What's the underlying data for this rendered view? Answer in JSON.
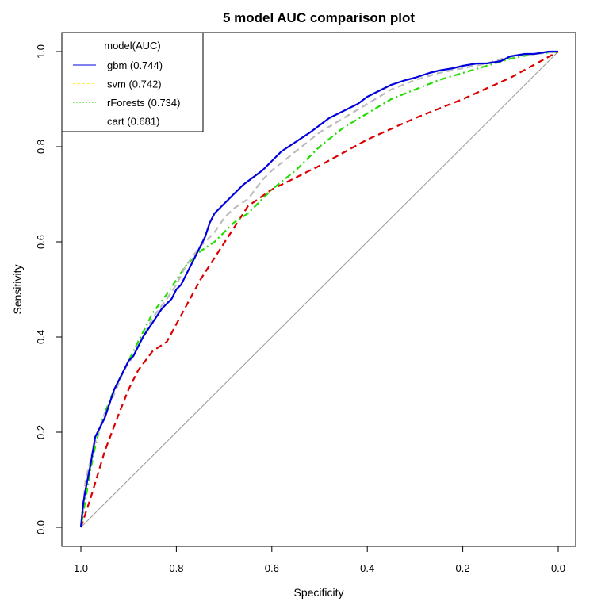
{
  "chart_data": {
    "type": "line",
    "title": "5 model AUC comparison plot",
    "xlabel": "Specificity",
    "ylabel": "Sensitivity",
    "xlim": [
      1.0,
      0.0
    ],
    "ylim": [
      0.0,
      1.0
    ],
    "x_reversed": true,
    "grid": false,
    "xticks": [
      "1.0",
      "0.8",
      "0.6",
      "0.4",
      "0.2",
      "0.0"
    ],
    "yticks": [
      "0.0",
      "0.2",
      "0.4",
      "0.6",
      "0.8",
      "1.0"
    ],
    "legend": {
      "title": "model(AUC)",
      "position": "top-left",
      "entries": [
        "gbm (0.744)",
        "svm (0.742)",
        "rForests (0.734)",
        "cart (0.681)"
      ]
    },
    "reference_line": {
      "from": [
        1.0,
        0.0
      ],
      "to": [
        0.0,
        1.0
      ],
      "color": "#9a9a9a"
    },
    "series": [
      {
        "name": "cart (0.681)",
        "color": "#dd0000",
        "style": "dashed",
        "legend_color": "#dd0000",
        "x": [
          1.0,
          0.98,
          0.95,
          0.92,
          0.9,
          0.88,
          0.85,
          0.82,
          0.75,
          0.65,
          0.6,
          0.55,
          0.5,
          0.4,
          0.3,
          0.2,
          0.1,
          0.0
        ],
        "y": [
          0.0,
          0.06,
          0.16,
          0.24,
          0.29,
          0.33,
          0.37,
          0.39,
          0.52,
          0.675,
          0.71,
          0.735,
          0.76,
          0.815,
          0.86,
          0.9,
          0.945,
          1.0
        ]
      },
      {
        "name": "rForests (0.734)",
        "color": "#22dd00",
        "style": "dotdash",
        "legend_color": "#22dd00",
        "x": [
          1.0,
          0.99,
          0.98,
          0.97,
          0.96,
          0.95,
          0.93,
          0.91,
          0.89,
          0.87,
          0.85,
          0.82,
          0.8,
          0.78,
          0.75,
          0.72,
          0.7,
          0.68,
          0.65,
          0.62,
          0.6,
          0.55,
          0.5,
          0.45,
          0.4,
          0.35,
          0.3,
          0.25,
          0.2,
          0.15,
          0.1,
          0.05,
          0.0
        ],
        "y": [
          0.0,
          0.06,
          0.12,
          0.17,
          0.21,
          0.24,
          0.29,
          0.33,
          0.37,
          0.41,
          0.45,
          0.49,
          0.52,
          0.55,
          0.58,
          0.6,
          0.62,
          0.64,
          0.66,
          0.69,
          0.71,
          0.75,
          0.8,
          0.84,
          0.87,
          0.9,
          0.92,
          0.94,
          0.955,
          0.97,
          0.985,
          0.995,
          1.0
        ]
      },
      {
        "name": "svm (0.742)",
        "color": "#bbbbbb",
        "style": "dashed",
        "legend_color": "#ffee33",
        "x": [
          1.0,
          0.99,
          0.98,
          0.97,
          0.96,
          0.95,
          0.93,
          0.91,
          0.89,
          0.87,
          0.85,
          0.82,
          0.8,
          0.78,
          0.75,
          0.72,
          0.7,
          0.68,
          0.65,
          0.62,
          0.6,
          0.55,
          0.5,
          0.45,
          0.4,
          0.35,
          0.3,
          0.25,
          0.2,
          0.15,
          0.1,
          0.05,
          0.0
        ],
        "y": [
          0.0,
          0.1,
          0.14,
          0.18,
          0.21,
          0.24,
          0.28,
          0.33,
          0.36,
          0.4,
          0.44,
          0.48,
          0.51,
          0.55,
          0.59,
          0.62,
          0.65,
          0.67,
          0.69,
          0.73,
          0.75,
          0.79,
          0.83,
          0.86,
          0.89,
          0.92,
          0.94,
          0.955,
          0.965,
          0.975,
          0.99,
          0.995,
          1.0
        ]
      },
      {
        "name": "gbm (0.744)",
        "color": "#0000dd",
        "style": "solid",
        "legend_color": "#0000dd",
        "x": [
          1.0,
          0.995,
          0.99,
          0.98,
          0.97,
          0.96,
          0.95,
          0.94,
          0.93,
          0.92,
          0.91,
          0.9,
          0.89,
          0.88,
          0.87,
          0.85,
          0.83,
          0.81,
          0.8,
          0.79,
          0.78,
          0.77,
          0.76,
          0.75,
          0.74,
          0.73,
          0.72,
          0.7,
          0.68,
          0.66,
          0.64,
          0.62,
          0.6,
          0.58,
          0.55,
          0.52,
          0.5,
          0.48,
          0.45,
          0.42,
          0.4,
          0.37,
          0.35,
          0.32,
          0.3,
          0.27,
          0.25,
          0.22,
          0.2,
          0.17,
          0.15,
          0.12,
          0.1,
          0.07,
          0.05,
          0.02,
          0.0
        ],
        "y": [
          0.0,
          0.05,
          0.08,
          0.13,
          0.19,
          0.21,
          0.23,
          0.26,
          0.29,
          0.31,
          0.33,
          0.35,
          0.36,
          0.38,
          0.4,
          0.43,
          0.46,
          0.48,
          0.5,
          0.51,
          0.53,
          0.55,
          0.57,
          0.59,
          0.61,
          0.64,
          0.66,
          0.68,
          0.7,
          0.72,
          0.735,
          0.75,
          0.77,
          0.79,
          0.81,
          0.83,
          0.845,
          0.86,
          0.875,
          0.89,
          0.905,
          0.92,
          0.93,
          0.94,
          0.945,
          0.955,
          0.96,
          0.965,
          0.97,
          0.975,
          0.975,
          0.98,
          0.99,
          0.995,
          0.995,
          1.0,
          1.0
        ]
      }
    ]
  }
}
